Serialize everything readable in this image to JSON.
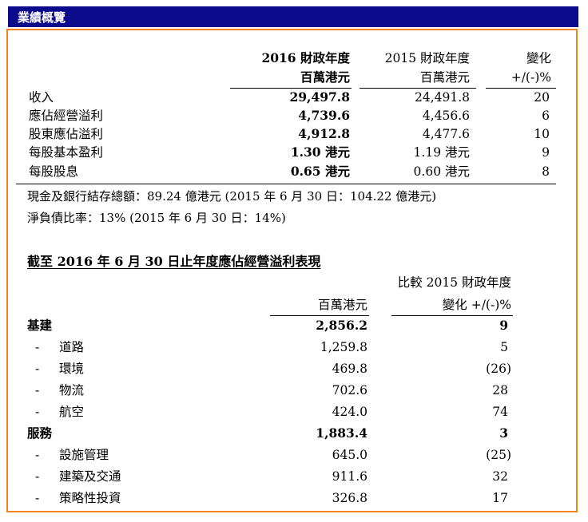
{
  "header": {
    "title": "業績概覽"
  },
  "summary": {
    "col_headers": {
      "current_year": "2016 財政年度",
      "current_unit": "百萬港元",
      "prior_year": "2015 財政年度",
      "prior_unit": "百萬港元",
      "change": "變化",
      "change_unit": "+/(-)%"
    },
    "rows": [
      {
        "label": "收入",
        "current": "29,497.8",
        "prior": "24,491.8",
        "change": "20"
      },
      {
        "label": "應佔經營溢利",
        "current": "4,739.6",
        "prior": "4,456.6",
        "change": "6"
      },
      {
        "label": "股東應佔溢利",
        "current": "4,912.8",
        "prior": "4,477.6",
        "change": "10"
      },
      {
        "label": "每股基本盈利",
        "current": "1.30 港元",
        "prior": "1.19 港元",
        "change": "9"
      },
      {
        "label": "每股股息",
        "current": "0.65 港元",
        "prior": "0.60 港元",
        "change": "8"
      }
    ],
    "note_cash": "現金及銀行結存總額：89.24 億港元 (2015 年 6 月 30 日：104.22 億港元)",
    "note_gearing": "淨負債比率：13% (2015 年 6 月 30 日：14%)"
  },
  "segment": {
    "title": "截至 2016 年 6 月 30 日止年度應佔經營溢利表現",
    "col_compare": "比較 2015 財政年度",
    "col_unit": "百萬港元",
    "col_change": "變化 +/(-)%",
    "rows": [
      {
        "label": "基建",
        "value": "2,856.2",
        "change": "9",
        "bold": true,
        "dash": ""
      },
      {
        "label": "道路",
        "value": "1,259.8",
        "change": "5",
        "bold": false,
        "dash": "-"
      },
      {
        "label": "環境",
        "value": "469.8",
        "change": "(26)",
        "bold": false,
        "dash": "-"
      },
      {
        "label": "物流",
        "value": "702.6",
        "change": "28",
        "bold": false,
        "dash": "-"
      },
      {
        "label": "航空",
        "value": "424.0",
        "change": "74",
        "bold": false,
        "dash": "-"
      },
      {
        "label": "服務",
        "value": "1,883.4",
        "change": "3",
        "bold": true,
        "dash": ""
      },
      {
        "label": "設施管理",
        "value": "645.0",
        "change": "(25)",
        "bold": false,
        "dash": "-"
      },
      {
        "label": "建築及交通",
        "value": "911.6",
        "change": "32",
        "bold": false,
        "dash": "-"
      },
      {
        "label": "策略性投資",
        "value": "326.8",
        "change": "17",
        "bold": false,
        "dash": "-"
      }
    ]
  }
}
